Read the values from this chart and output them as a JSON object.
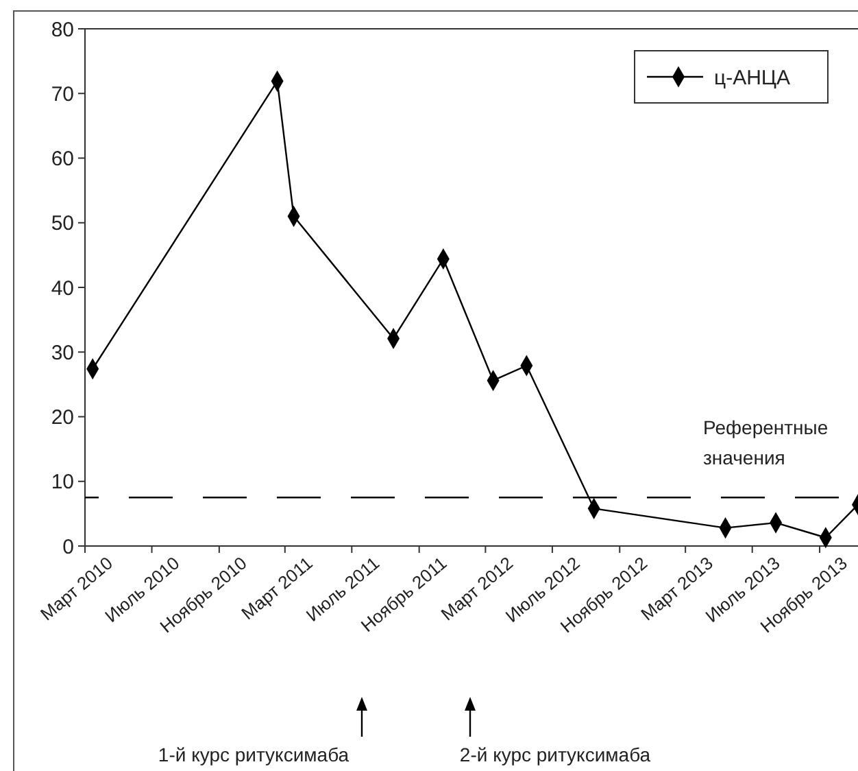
{
  "chart_data": {
    "type": "line",
    "x": [
      "2010-03-15",
      "2011-02-15",
      "2011-03-17",
      "2011-09-15",
      "2011-12-15",
      "2012-03-15",
      "2012-05-15",
      "2012-09-15",
      "2013-05-13",
      "2013-08-13",
      "2013-11-12",
      "2014-01-10"
    ],
    "series": [
      {
        "name": "ц-АНЦА",
        "color": "#000000",
        "values": [
          27.4,
          71.9,
          51.0,
          32.1,
          44.4,
          25.6,
          27.9,
          5.8,
          2.8,
          3.6,
          1.3,
          6.4
        ]
      }
    ],
    "xlim": [
      "2010-03-01",
      "2014-01-10"
    ],
    "xticks": [
      {
        "value": "2010-03-01",
        "label": "Март 2010"
      },
      {
        "value": "2010-07-01",
        "label": "Июль 2010"
      },
      {
        "value": "2010-11-01",
        "label": "Ноябрь 2010"
      },
      {
        "value": "2011-03-01",
        "label": "Март 2011"
      },
      {
        "value": "2011-07-01",
        "label": "Июль 2011"
      },
      {
        "value": "2011-11-01",
        "label": "Ноябрь 2011"
      },
      {
        "value": "2012-03-01",
        "label": "Март 2012"
      },
      {
        "value": "2012-07-01",
        "label": "Июль 2012"
      },
      {
        "value": "2012-11-01",
        "label": "Ноябрь 2012"
      },
      {
        "value": "2013-03-01",
        "label": "Март 2013"
      },
      {
        "value": "2013-07-01",
        "label": "Июль 2013"
      },
      {
        "value": "2013-11-01",
        "label": "Ноябрь 2013"
      }
    ],
    "ylim": [
      0,
      80
    ],
    "yticks": [
      0,
      10,
      20,
      30,
      40,
      50,
      60,
      70,
      80
    ],
    "ref_lines": [
      {
        "axis": "y",
        "value": 7.5,
        "label": "Референтные значения",
        "color": "#000000",
        "line_style": "dashed"
      }
    ],
    "annotations": [
      "1-й курс ритуксимаба",
      "2-й курс ритуксимаба"
    ],
    "marker": "diamond",
    "line_style": "solid",
    "grid": false,
    "legend": "top right"
  }
}
